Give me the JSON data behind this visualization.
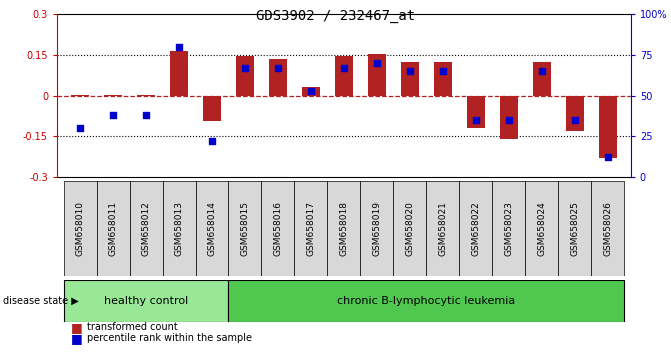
{
  "title": "GDS3902 / 232467_at",
  "samples": [
    "GSM658010",
    "GSM658011",
    "GSM658012",
    "GSM658013",
    "GSM658014",
    "GSM658015",
    "GSM658016",
    "GSM658017",
    "GSM658018",
    "GSM658019",
    "GSM658020",
    "GSM658021",
    "GSM658022",
    "GSM658023",
    "GSM658024",
    "GSM658025",
    "GSM658026"
  ],
  "red_values": [
    0.003,
    0.002,
    0.002,
    0.163,
    -0.095,
    0.145,
    0.135,
    0.03,
    0.145,
    0.155,
    0.125,
    0.125,
    -0.118,
    -0.16,
    0.125,
    -0.13,
    -0.23
  ],
  "blue_percentile": [
    30,
    38,
    38,
    80,
    22,
    67,
    67,
    53,
    67,
    70,
    65,
    65,
    35,
    35,
    65,
    35,
    12
  ],
  "ylim_left": [
    -0.3,
    0.3
  ],
  "ylim_right": [
    0,
    100
  ],
  "yticks_left": [
    -0.3,
    -0.15,
    0.0,
    0.15,
    0.3
  ],
  "ytick_labels_left": [
    "-0.3",
    "-0.15",
    "0",
    "0.15",
    "0.3"
  ],
  "yticks_right": [
    0,
    25,
    50,
    75,
    100
  ],
  "ytick_labels_right": [
    "0",
    "25",
    "50",
    "75",
    "100%"
  ],
  "healthy_control_count": 5,
  "group1_label": "healthy control",
  "group2_label": "chronic B-lymphocytic leukemia",
  "disease_state_label": "disease state",
  "legend_red": "transformed count",
  "legend_blue": "percentile rank within the sample",
  "bar_color": "#B22222",
  "dot_color": "#0000CC",
  "bar_width": 0.55,
  "bg_color": "#FFFFFF",
  "plot_bg": "#FFFFFF",
  "group1_color": "#98E898",
  "group2_color": "#50C850",
  "sample_box_color": "#D8D8D8",
  "dotted_line_color": "#000000",
  "zero_line_color": "#B22222",
  "left_axis_color": "#CC0000",
  "right_axis_color": "#0000CC",
  "title_fontsize": 10,
  "tick_fontsize": 7,
  "label_fontsize": 8,
  "sample_fontsize": 6.5
}
